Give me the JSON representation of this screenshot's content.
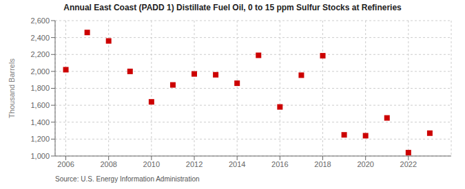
{
  "chart_data": {
    "type": "scatter",
    "title": "Annual East Coast (PADD 1) Distillate Fuel Oil, 0 to 15 ppm Sulfur Stocks at Refineries",
    "ylabel": "Thousand Barrels",
    "annotations": [
      "Source: U.S. Energy Information Administration"
    ],
    "x": [
      2006,
      2007,
      2008,
      2009,
      2010,
      2011,
      2012,
      2013,
      2014,
      2015,
      2016,
      2017,
      2018,
      2019,
      2020,
      2021,
      2022,
      2023
    ],
    "values": [
      2020,
      2460,
      2360,
      2000,
      1640,
      1840,
      1970,
      1960,
      1860,
      2190,
      1580,
      1955,
      2185,
      1250,
      1240,
      1450,
      1040,
      1270
    ],
    "color": "#cc0000",
    "marker": "square",
    "xlim": [
      2005.5,
      2024.0
    ],
    "ylim": [
      1000,
      2600
    ],
    "xticks": [
      2006,
      2008,
      2010,
      2012,
      2014,
      2016,
      2018,
      2020,
      2022
    ],
    "yticks": [
      {
        "value": 1000,
        "label": "1,000"
      },
      {
        "value": 1200,
        "label": "1,200"
      },
      {
        "value": 1400,
        "label": "1,400"
      },
      {
        "value": 1600,
        "label": "1,600"
      },
      {
        "value": 1800,
        "label": "1,800"
      },
      {
        "value": 2000,
        "label": "2,000"
      },
      {
        "value": 2200,
        "label": "2,200"
      },
      {
        "value": 2400,
        "label": "2,400"
      },
      {
        "value": 2600,
        "label": "2,600"
      }
    ],
    "grid": true
  }
}
